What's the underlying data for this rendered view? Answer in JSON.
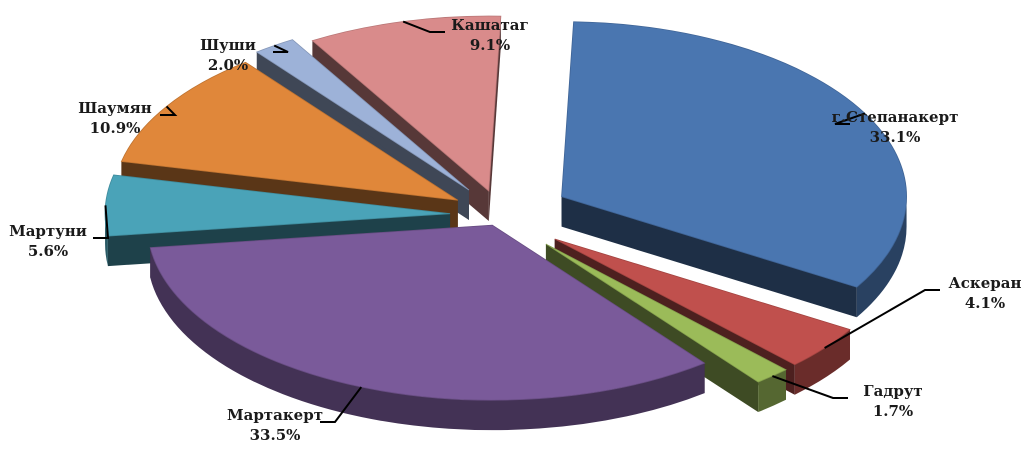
{
  "chart_data": {
    "type": "pie",
    "title": "",
    "style": "3d-exploded",
    "slices": [
      {
        "name": "г.Степанакерт",
        "value": 33.1,
        "label": "33.1%",
        "color": "#4a76b0"
      },
      {
        "name": "Аскеран",
        "value": 4.1,
        "label": "4.1%",
        "color": "#c0504d"
      },
      {
        "name": "Гадрут",
        "value": 1.7,
        "label": "1.7%",
        "color": "#9bbb59"
      },
      {
        "name": "Мартакерт",
        "value": 33.5,
        "label": "33.5%",
        "color": "#7a5a9a"
      },
      {
        "name": "Мартуни",
        "value": 5.6,
        "label": "5.6%",
        "color": "#4aa3b8"
      },
      {
        "name": "Шаумян",
        "value": 10.9,
        "label": "10.9%",
        "color": "#e0873a"
      },
      {
        "name": "Шуши",
        "value": 2.0,
        "label": "2.0%",
        "color": "#9db2d8"
      },
      {
        "name": "Кашатаг",
        "value": 9.1,
        "label": "9.1%",
        "color": "#d98b8b"
      }
    ]
  }
}
